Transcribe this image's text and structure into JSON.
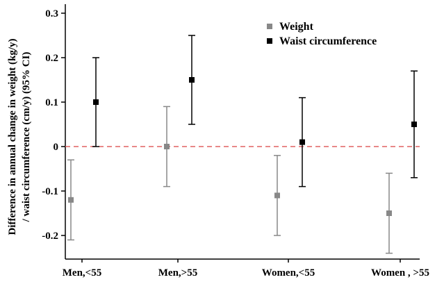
{
  "chart_data": {
    "type": "scatter",
    "categories": [
      "Men,<55",
      "Men,>55",
      "Women,<55",
      "Women , >55"
    ],
    "ylabel_lines": [
      "Difference in annual change in weight (kg/y)",
      "/ waist circumference (cm/y) (95% CI)"
    ],
    "ylim": [
      -0.25,
      0.32
    ],
    "yticks": [
      -0.2,
      -0.1,
      0,
      0.1,
      0.2,
      0.3
    ],
    "ytick_labels": [
      "-0.2",
      "-0.1",
      "0",
      "0.1",
      "0.2",
      "0.3"
    ],
    "reference_line": {
      "y": 0,
      "style": "dashed",
      "color": "#e06060"
    },
    "grid": false,
    "legend_position": "top-right",
    "series": [
      {
        "name": "Weight",
        "color": "#888888",
        "marker": "square",
        "points": [
          {
            "category": "Men,<55",
            "value": -0.12,
            "lower": -0.21,
            "upper": -0.03
          },
          {
            "category": "Men,>55",
            "value": 0.0,
            "lower": -0.09,
            "upper": 0.09
          },
          {
            "category": "Women,<55",
            "value": -0.11,
            "lower": -0.2,
            "upper": -0.02
          },
          {
            "category": "Women , >55",
            "value": -0.15,
            "lower": -0.24,
            "upper": -0.06
          }
        ]
      },
      {
        "name": "Waist circumference",
        "color": "#000000",
        "marker": "square",
        "points": [
          {
            "category": "Men,<55",
            "value": 0.1,
            "lower": 0.0,
            "upper": 0.2
          },
          {
            "category": "Men,>55",
            "value": 0.15,
            "lower": 0.05,
            "upper": 0.25
          },
          {
            "category": "Women,<55",
            "value": 0.01,
            "lower": -0.09,
            "upper": 0.11
          },
          {
            "category": "Women , >55",
            "value": 0.05,
            "lower": -0.07,
            "upper": 0.17
          }
        ]
      }
    ]
  }
}
